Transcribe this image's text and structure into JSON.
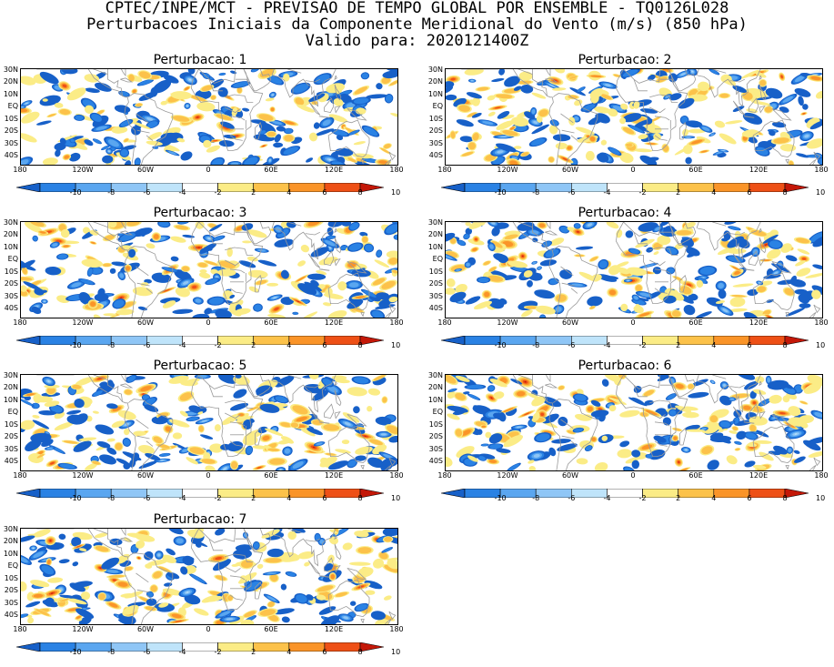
{
  "header": {
    "line1": "CPTEC/INPE/MCT - PREVISAO DE TEMPO GLOBAL POR ENSEMBLE - TQ0126L028",
    "line2": "Perturbacoes Iniciais da Componente Meridional do Vento (m/s) (850 hPa)",
    "line3": "Valido para: 2020121400Z"
  },
  "panels": [
    {
      "title": "Perturbacao: 1"
    },
    {
      "title": "Perturbacao: 2"
    },
    {
      "title": "Perturbacao: 3"
    },
    {
      "title": "Perturbacao: 4"
    },
    {
      "title": "Perturbacao: 5"
    },
    {
      "title": "Perturbacao: 6"
    },
    {
      "title": "Perturbacao: 7"
    }
  ],
  "lat_labels": [
    "30N",
    "20N",
    "10N",
    "EQ",
    "10S",
    "20S",
    "30S",
    "40S"
  ],
  "lon_labels": [
    "180",
    "120W",
    "60W",
    "0",
    "60E",
    "120E",
    "180"
  ],
  "colorbar": {
    "labels": [
      "-10",
      "-8",
      "-6",
      "-4",
      "-2",
      "2",
      "4",
      "6",
      "8",
      "10"
    ],
    "colors": [
      "#1760c8",
      "#2a82e4",
      "#5aa6f0",
      "#8fc6f6",
      "#bfe4fa",
      "#ffffff",
      "#fbec86",
      "#fcc24a",
      "#fa9428",
      "#ee5016",
      "#c41808"
    ]
  }
}
